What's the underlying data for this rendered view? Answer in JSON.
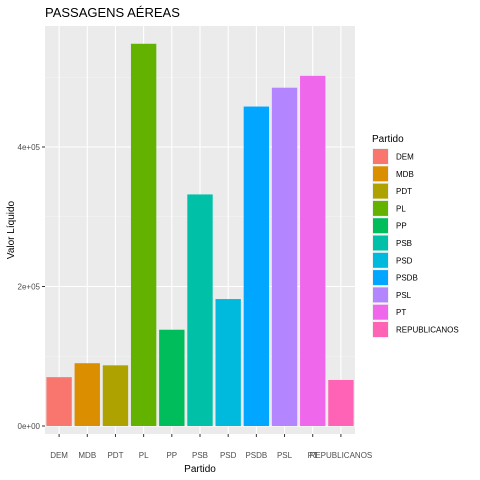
{
  "chart_data": {
    "type": "bar",
    "title": "PASSAGENS AÉREAS",
    "xlabel": "Partido",
    "ylabel": "Valor Líquido",
    "categories": [
      "DEM",
      "MDB",
      "PDT",
      "PL",
      "PP",
      "PSB",
      "PSD",
      "PSDB",
      "PSL",
      "PT",
      "REPUBLICANOS"
    ],
    "values": [
      70000,
      90000,
      87000,
      548000,
      138000,
      332000,
      182000,
      458000,
      485000,
      502000,
      66000
    ],
    "colors": [
      "#F8766D",
      "#DB8E00",
      "#AEA200",
      "#64B200",
      "#00BD5C",
      "#00C1A7",
      "#00BADE",
      "#00A6FF",
      "#B385FF",
      "#EF67EB",
      "#FF63B6"
    ],
    "y_ticks": [
      0,
      200000,
      400000
    ],
    "y_tick_labels": [
      "0e+00",
      "2e+05",
      "4e+05"
    ],
    "ylim": [
      0,
      575000
    ],
    "grid": true,
    "legend": {
      "title": "Partido",
      "placement": "right"
    }
  }
}
